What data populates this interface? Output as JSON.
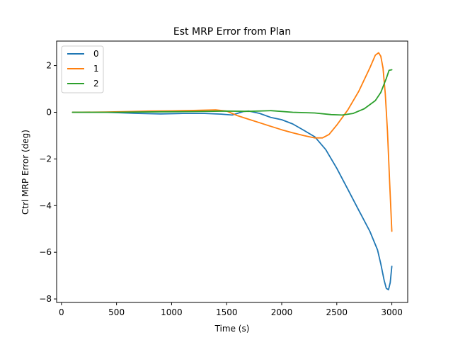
{
  "chart_data": {
    "type": "line",
    "title": "Est MRP Error from Plan",
    "xlabel": "Time (s)",
    "ylabel": "Ctrl MRP Error (deg)",
    "xlim": [
      -44,
      3144
    ],
    "ylim": [
      -8.15,
      3.05
    ],
    "xticks": [
      0,
      500,
      1000,
      1500,
      2000,
      2500,
      3000
    ],
    "yticks": [
      -8,
      -6,
      -4,
      -2,
      0,
      2
    ],
    "xtick_labels": [
      "0",
      "500",
      "1000",
      "1500",
      "2000",
      "2500",
      "3000"
    ],
    "ytick_labels": [
      "−8",
      "−6",
      "−4",
      "−2",
      "0",
      "2"
    ],
    "grid": false,
    "legend_position": "top-left",
    "series": [
      {
        "name": "0",
        "color": "#1f77b4",
        "points": [
          [
            100,
            0
          ],
          [
            400,
            0.0
          ],
          [
            700,
            -0.05
          ],
          [
            900,
            -0.07
          ],
          [
            1100,
            -0.05
          ],
          [
            1300,
            -0.05
          ],
          [
            1450,
            -0.08
          ],
          [
            1550,
            -0.12
          ],
          [
            1650,
            0.03
          ],
          [
            1700,
            0.05
          ],
          [
            1800,
            -0.05
          ],
          [
            1900,
            -0.22
          ],
          [
            2000,
            -0.32
          ],
          [
            2100,
            -0.5
          ],
          [
            2200,
            -0.77
          ],
          [
            2300,
            -1.05
          ],
          [
            2400,
            -1.6
          ],
          [
            2500,
            -2.4
          ],
          [
            2600,
            -3.3
          ],
          [
            2700,
            -4.2
          ],
          [
            2800,
            -5.1
          ],
          [
            2870,
            -5.9
          ],
          [
            2900,
            -6.5
          ],
          [
            2930,
            -7.2
          ],
          [
            2950,
            -7.55
          ],
          [
            2970,
            -7.6
          ],
          [
            2985,
            -7.3
          ],
          [
            3000,
            -6.6
          ]
        ]
      },
      {
        "name": "1",
        "color": "#ff7f0e",
        "points": [
          [
            100,
            0
          ],
          [
            400,
            0.01
          ],
          [
            600,
            0.03
          ],
          [
            800,
            0.05
          ],
          [
            1000,
            0.06
          ],
          [
            1200,
            0.08
          ],
          [
            1400,
            0.1
          ],
          [
            1500,
            0.05
          ],
          [
            1600,
            -0.15
          ],
          [
            1700,
            -0.3
          ],
          [
            1800,
            -0.45
          ],
          [
            1900,
            -0.6
          ],
          [
            2000,
            -0.75
          ],
          [
            2100,
            -0.88
          ],
          [
            2200,
            -1.0
          ],
          [
            2300,
            -1.1
          ],
          [
            2370,
            -1.1
          ],
          [
            2430,
            -0.95
          ],
          [
            2500,
            -0.55
          ],
          [
            2600,
            0.1
          ],
          [
            2700,
            0.9
          ],
          [
            2800,
            1.9
          ],
          [
            2850,
            2.45
          ],
          [
            2880,
            2.55
          ],
          [
            2900,
            2.4
          ],
          [
            2920,
            1.9
          ],
          [
            2940,
            0.8
          ],
          [
            2960,
            -0.8
          ],
          [
            2980,
            -3.0
          ],
          [
            3000,
            -5.1
          ]
        ]
      },
      {
        "name": "2",
        "color": "#2ca02c",
        "points": [
          [
            100,
            0
          ],
          [
            500,
            0.0
          ],
          [
            900,
            0.02
          ],
          [
            1200,
            0.03
          ],
          [
            1500,
            0.05
          ],
          [
            1700,
            0.04
          ],
          [
            1900,
            0.07
          ],
          [
            2100,
            0.0
          ],
          [
            2300,
            -0.03
          ],
          [
            2450,
            -0.1
          ],
          [
            2550,
            -0.12
          ],
          [
            2650,
            -0.05
          ],
          [
            2750,
            0.15
          ],
          [
            2850,
            0.5
          ],
          [
            2900,
            0.85
          ],
          [
            2950,
            1.45
          ],
          [
            2975,
            1.8
          ],
          [
            3000,
            1.82
          ]
        ]
      }
    ]
  }
}
